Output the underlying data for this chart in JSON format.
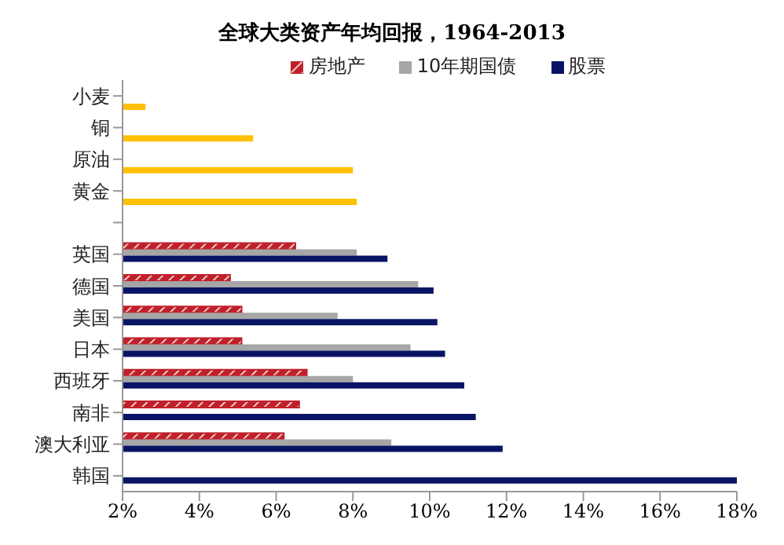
{
  "chart_data": {
    "type": "bar",
    "orientation": "horizontal",
    "title": "全球大类资产年均回报，1964-2013",
    "categories": [
      "小麦",
      "铜",
      "原油",
      "黄金",
      null,
      "英国",
      "德国",
      "美国",
      "日本",
      "西班牙",
      "南非",
      "澳大利亚",
      "韩国"
    ],
    "series": [
      {
        "name": "房地产",
        "color": "#c0202a",
        "values": [
          null,
          null,
          null,
          null,
          null,
          6.5,
          4.8,
          5.1,
          5.1,
          6.8,
          6.6,
          6.2,
          null
        ]
      },
      {
        "name": "10年期国债",
        "color": "#a6a6a6",
        "values": [
          null,
          null,
          null,
          null,
          null,
          8.1,
          9.7,
          7.6,
          9.5,
          8.0,
          null,
          9.0,
          null
        ]
      },
      {
        "name": "股票",
        "color": "#0a1464",
        "values": [
          null,
          null,
          null,
          null,
          null,
          8.9,
          10.1,
          10.2,
          10.4,
          10.9,
          11.2,
          11.9,
          18.0
        ]
      },
      {
        "color": "#ffc000",
        "values": [
          2.6,
          5.4,
          8.0,
          8.1,
          null,
          null,
          null,
          null,
          null,
          null,
          null,
          null,
          null
        ]
      }
    ],
    "xlim": [
      2,
      18
    ],
    "xticks": [
      {
        "value": 2,
        "label": "2%"
      },
      {
        "value": 4,
        "label": "4%"
      },
      {
        "value": 6,
        "label": "6%"
      },
      {
        "value": 8,
        "label": "8%"
      },
      {
        "value": 10,
        "label": "10%"
      },
      {
        "value": 12,
        "label": "12%"
      },
      {
        "value": 14,
        "label": "14%"
      },
      {
        "value": 16,
        "label": "16%"
      },
      {
        "value": 18,
        "label": "18%"
      }
    ],
    "grid": false,
    "legend": "top"
  }
}
